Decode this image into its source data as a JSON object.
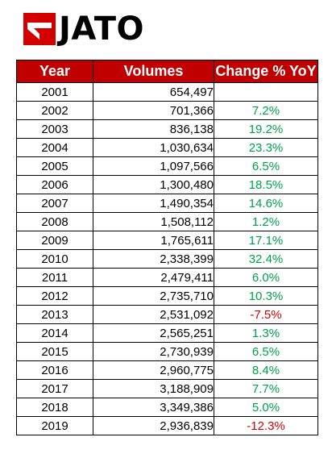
{
  "brand": {
    "logo_text": "JATO",
    "logo_color": "#d40000"
  },
  "table": {
    "header_color": "#c00000",
    "positive_color": "#00a14b",
    "negative_color": "#d40000",
    "columns": [
      "Year",
      "Volumes",
      "Change % YoY"
    ],
    "rows": [
      {
        "year": "2001",
        "volume": "654,497",
        "change": ""
      },
      {
        "year": "2002",
        "volume": "701,366",
        "change": "7.2%"
      },
      {
        "year": "2003",
        "volume": "836,138",
        "change": "19.2%"
      },
      {
        "year": "2004",
        "volume": "1,030,634",
        "change": "23.3%"
      },
      {
        "year": "2005",
        "volume": "1,097,566",
        "change": "6.5%"
      },
      {
        "year": "2006",
        "volume": "1,300,480",
        "change": "18.5%"
      },
      {
        "year": "2007",
        "volume": "1,490,354",
        "change": "14.6%"
      },
      {
        "year": "2008",
        "volume": "1,508,112",
        "change": "1.2%"
      },
      {
        "year": "2009",
        "volume": "1,765,611",
        "change": "17.1%"
      },
      {
        "year": "2010",
        "volume": "2,338,399",
        "change": "32.4%"
      },
      {
        "year": "2011",
        "volume": "2,479,411",
        "change": "6.0%"
      },
      {
        "year": "2012",
        "volume": "2,735,710",
        "change": "10.3%"
      },
      {
        "year": "2013",
        "volume": "2,531,092",
        "change": "-7.5%"
      },
      {
        "year": "2014",
        "volume": "2,565,251",
        "change": "1.3%"
      },
      {
        "year": "2015",
        "volume": "2,730,939",
        "change": "6.5%"
      },
      {
        "year": "2016",
        "volume": "2,960,775",
        "change": "8.4%"
      },
      {
        "year": "2017",
        "volume": "3,188,909",
        "change": "7.7%"
      },
      {
        "year": "2018",
        "volume": "3,349,386",
        "change": "5.0%"
      },
      {
        "year": "2019",
        "volume": "2,936,839",
        "change": "-12.3%"
      }
    ]
  }
}
